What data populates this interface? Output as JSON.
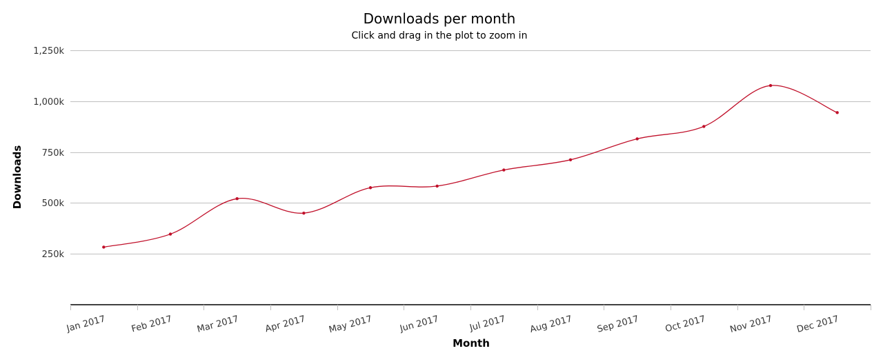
{
  "chart_data": {
    "type": "line",
    "title": "Downloads per month",
    "subtitle": "Click and drag in the plot to zoom in",
    "xlabel": "Month",
    "ylabel": "Downloads",
    "categories": [
      "Jan 2017",
      "Feb 2017",
      "Mar 2017",
      "Apr 2017",
      "May 2017",
      "Jun 2017",
      "Jul 2017",
      "Aug 2017",
      "Sep 2017",
      "Oct 2017",
      "Nov 2017",
      "Dec 2017"
    ],
    "series": [
      {
        "values": [
          283000,
          347000,
          521000,
          450000,
          575000,
          583000,
          662000,
          712000,
          815000,
          876000,
          1077000,
          944000
        ],
        "color": "#c0102a"
      }
    ],
    "yticks": [
      250000,
      500000,
      750000,
      1000000,
      1250000
    ],
    "ytick_labels": [
      "250k",
      "500k",
      "750k",
      "1,000k",
      "1,250k"
    ],
    "ylim": [
      0,
      1250000
    ],
    "grid": true,
    "legend": false,
    "curve": "smooth"
  }
}
